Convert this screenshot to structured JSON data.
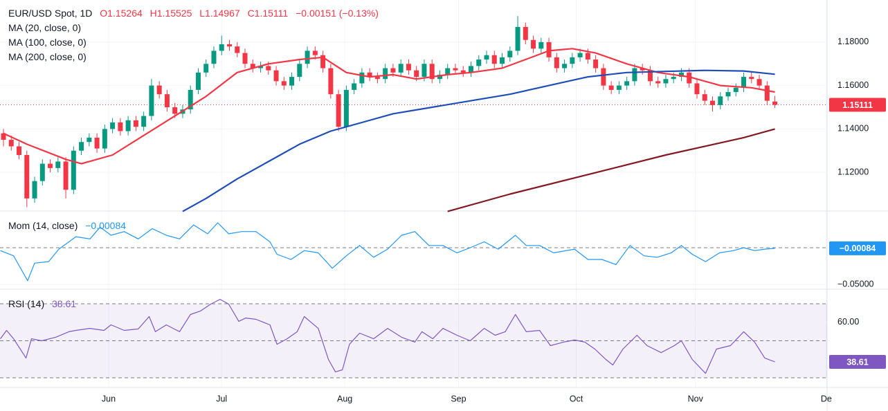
{
  "chart_data": [
    {
      "type": "candlestick",
      "title": "EUR/USD Spot, 1D",
      "ohlc_labels": [
        "O1.15264",
        "H1.15525",
        "L1.14967",
        "C1.15111"
      ],
      "change_label": "−0.00151 (−0.13%)",
      "up_color": "#089981",
      "down_color": "#f23645",
      "xlim": [
        -0.444,
        105.7
      ],
      "xticks": [
        {
          "value": 13.5,
          "label": "Jun"
        },
        {
          "value": 28.0,
          "label": "Jul"
        },
        {
          "value": 43.8,
          "label": "Aug"
        },
        {
          "value": 58.4,
          "label": "Sep"
        },
        {
          "value": 73.5,
          "label": "Oct"
        },
        {
          "value": 88.8,
          "label": "Nov"
        },
        {
          "value": 105.6,
          "label": "De"
        }
      ],
      "ylim": [
        1.1022,
        1.1994
      ],
      "yticks": [
        {
          "value": 1.12,
          "label": "1.12000"
        },
        {
          "value": 1.14,
          "label": "1.14000"
        },
        {
          "value": 1.16,
          "label": "1.16000"
        },
        {
          "value": 1.18,
          "label": "1.18000"
        }
      ],
      "last_price": {
        "value": 1.15111,
        "label": "1.15111"
      },
      "x": [
        0,
        1,
        2,
        3,
        4,
        5,
        6,
        7,
        8,
        9,
        10,
        11,
        12,
        13,
        14,
        15,
        16,
        17,
        18,
        19,
        20,
        21,
        22,
        23,
        24,
        25,
        26,
        27,
        28,
        29,
        30,
        31,
        32,
        33,
        34,
        35,
        36,
        37,
        38,
        39,
        40,
        41,
        42,
        43,
        44,
        45,
        46,
        47,
        48,
        49,
        50,
        51,
        52,
        53,
        54,
        55,
        56,
        57,
        58,
        59,
        60,
        61,
        62,
        63,
        64,
        65,
        66,
        67,
        68,
        69,
        70,
        71,
        72,
        73,
        74,
        75,
        76,
        77,
        78,
        79,
        80,
        81,
        82,
        83,
        84,
        85,
        86,
        87,
        88,
        89,
        90,
        91,
        92,
        93,
        94,
        95,
        96,
        97,
        98,
        99
      ],
      "ohlc": [
        [
          1.138,
          1.14,
          1.132,
          1.135
        ],
        [
          1.135,
          1.137,
          1.13,
          1.132
        ],
        [
          1.132,
          1.134,
          1.126,
          1.128
        ],
        [
          1.128,
          1.13,
          1.104,
          1.108
        ],
        [
          1.108,
          1.118,
          1.106,
          1.116
        ],
        [
          1.116,
          1.126,
          1.114,
          1.124
        ],
        [
          1.124,
          1.126,
          1.12,
          1.122
        ],
        [
          1.122,
          1.127,
          1.12,
          1.125
        ],
        [
          1.125,
          1.127,
          1.108,
          1.112
        ],
        [
          1.112,
          1.132,
          1.11,
          1.13
        ],
        [
          1.13,
          1.136,
          1.128,
          1.134
        ],
        [
          1.134,
          1.138,
          1.132,
          1.136
        ],
        [
          1.136,
          1.138,
          1.129,
          1.131
        ],
        [
          1.131,
          1.142,
          1.129,
          1.14
        ],
        [
          1.14,
          1.145,
          1.138,
          1.143
        ],
        [
          1.143,
          1.145,
          1.137,
          1.139
        ],
        [
          1.139,
          1.146,
          1.137,
          1.144
        ],
        [
          1.144,
          1.146,
          1.139,
          1.141
        ],
        [
          1.141,
          1.148,
          1.139,
          1.146
        ],
        [
          1.146,
          1.163,
          1.144,
          1.16
        ],
        [
          1.16,
          1.162,
          1.154,
          1.156
        ],
        [
          1.156,
          1.158,
          1.148,
          1.15
        ],
        [
          1.15,
          1.152,
          1.145,
          1.147
        ],
        [
          1.147,
          1.151,
          1.145,
          1.149
        ],
        [
          1.149,
          1.16,
          1.147,
          1.158
        ],
        [
          1.158,
          1.168,
          1.156,
          1.166
        ],
        [
          1.166,
          1.172,
          1.164,
          1.17
        ],
        [
          1.17,
          1.178,
          1.168,
          1.176
        ],
        [
          1.176,
          1.183,
          1.174,
          1.179
        ],
        [
          1.179,
          1.181,
          1.176,
          1.178
        ],
        [
          1.178,
          1.18,
          1.173,
          1.175
        ],
        [
          1.175,
          1.177,
          1.168,
          1.17
        ],
        [
          1.17,
          1.172,
          1.166,
          1.168
        ],
        [
          1.168,
          1.171,
          1.166,
          1.169
        ],
        [
          1.169,
          1.171,
          1.165,
          1.167
        ],
        [
          1.167,
          1.169,
          1.16,
          1.162
        ],
        [
          1.162,
          1.164,
          1.158,
          1.16
        ],
        [
          1.16,
          1.166,
          1.158,
          1.164
        ],
        [
          1.164,
          1.172,
          1.162,
          1.17
        ],
        [
          1.17,
          1.178,
          1.168,
          1.176
        ],
        [
          1.176,
          1.178,
          1.172,
          1.174
        ],
        [
          1.174,
          1.176,
          1.166,
          1.168
        ],
        [
          1.168,
          1.17,
          1.154,
          1.156
        ],
        [
          1.156,
          1.158,
          1.139,
          1.141
        ],
        [
          1.141,
          1.16,
          1.139,
          1.158
        ],
        [
          1.158,
          1.163,
          1.156,
          1.161
        ],
        [
          1.161,
          1.168,
          1.159,
          1.166
        ],
        [
          1.166,
          1.168,
          1.162,
          1.164
        ],
        [
          1.164,
          1.166,
          1.161,
          1.163
        ],
        [
          1.163,
          1.17,
          1.161,
          1.168
        ],
        [
          1.168,
          1.17,
          1.164,
          1.166
        ],
        [
          1.166,
          1.172,
          1.164,
          1.17
        ],
        [
          1.17,
          1.172,
          1.165,
          1.167
        ],
        [
          1.167,
          1.169,
          1.162,
          1.164
        ],
        [
          1.164,
          1.172,
          1.162,
          1.17
        ],
        [
          1.17,
          1.172,
          1.161,
          1.163
        ],
        [
          1.163,
          1.167,
          1.161,
          1.165
        ],
        [
          1.165,
          1.17,
          1.163,
          1.168
        ],
        [
          1.168,
          1.17,
          1.165,
          1.167
        ],
        [
          1.167,
          1.169,
          1.164,
          1.166
        ],
        [
          1.166,
          1.171,
          1.164,
          1.169
        ],
        [
          1.169,
          1.174,
          1.167,
          1.172
        ],
        [
          1.172,
          1.176,
          1.17,
          1.174
        ],
        [
          1.174,
          1.176,
          1.168,
          1.17
        ],
        [
          1.17,
          1.175,
          1.168,
          1.173
        ],
        [
          1.173,
          1.178,
          1.171,
          1.176
        ],
        [
          1.176,
          1.192,
          1.174,
          1.187
        ],
        [
          1.187,
          1.189,
          1.179,
          1.181
        ],
        [
          1.181,
          1.183,
          1.175,
          1.177
        ],
        [
          1.177,
          1.182,
          1.175,
          1.18
        ],
        [
          1.18,
          1.182,
          1.171,
          1.173
        ],
        [
          1.173,
          1.175,
          1.166,
          1.168
        ],
        [
          1.168,
          1.172,
          1.166,
          1.17
        ],
        [
          1.17,
          1.175,
          1.168,
          1.173
        ],
        [
          1.173,
          1.177,
          1.171,
          1.175
        ],
        [
          1.175,
          1.177,
          1.17,
          1.172
        ],
        [
          1.172,
          1.174,
          1.166,
          1.168
        ],
        [
          1.168,
          1.17,
          1.158,
          1.16
        ],
        [
          1.16,
          1.162,
          1.156,
          1.158
        ],
        [
          1.158,
          1.162,
          1.156,
          1.16
        ],
        [
          1.16,
          1.164,
          1.158,
          1.162
        ],
        [
          1.162,
          1.17,
          1.16,
          1.168
        ],
        [
          1.168,
          1.17,
          1.165,
          1.167
        ],
        [
          1.167,
          1.169,
          1.16,
          1.162
        ],
        [
          1.162,
          1.164,
          1.159,
          1.161
        ],
        [
          1.161,
          1.165,
          1.159,
          1.163
        ],
        [
          1.163,
          1.166,
          1.161,
          1.164
        ],
        [
          1.164,
          1.168,
          1.162,
          1.166
        ],
        [
          1.166,
          1.168,
          1.159,
          1.161
        ],
        [
          1.161,
          1.163,
          1.154,
          1.156
        ],
        [
          1.156,
          1.158,
          1.151,
          1.153
        ],
        [
          1.153,
          1.155,
          1.148,
          1.151
        ],
        [
          1.151,
          1.157,
          1.149,
          1.155
        ],
        [
          1.155,
          1.159,
          1.153,
          1.157
        ],
        [
          1.157,
          1.161,
          1.155,
          1.159
        ],
        [
          1.159,
          1.166,
          1.157,
          1.164
        ],
        [
          1.164,
          1.166,
          1.161,
          1.163
        ],
        [
          1.163,
          1.165,
          1.158,
          1.16
        ],
        [
          1.16,
          1.162,
          1.151,
          1.153
        ],
        [
          1.15264,
          1.15525,
          1.14967,
          1.15111
        ]
      ],
      "overlays": [
        {
          "name": "MA (20, close, 0)",
          "color": "#f23645",
          "x": [
            0,
            3,
            8,
            10,
            14,
            18,
            22,
            26,
            30,
            34,
            38,
            41,
            44,
            47,
            50,
            53,
            57,
            60,
            64,
            67,
            70,
            73,
            76,
            80,
            84,
            88,
            92,
            96,
            99
          ],
          "values": [
            1.138,
            1.133,
            1.126,
            1.124,
            1.128,
            1.137,
            1.146,
            1.155,
            1.166,
            1.17,
            1.172,
            1.173,
            1.166,
            1.164,
            1.165,
            1.163,
            1.165,
            1.166,
            1.168,
            1.172,
            1.176,
            1.177,
            1.175,
            1.17,
            1.166,
            1.164,
            1.16,
            1.159,
            1.157
          ]
        },
        {
          "name": "MA (100, close, 0)",
          "color": "#1e4db7",
          "x": [
            23,
            26,
            30,
            34,
            38,
            42,
            46,
            50,
            55,
            60,
            65,
            70,
            75,
            80,
            85,
            90,
            95,
            99
          ],
          "values": [
            1.102,
            1.108,
            1.117,
            1.125,
            1.133,
            1.139,
            1.143,
            1.147,
            1.15,
            1.153,
            1.156,
            1.16,
            1.164,
            1.166,
            1.1665,
            1.167,
            1.1667,
            1.1652
          ]
        },
        {
          "name": "MA (200, close, 0)",
          "color": "#801922",
          "x": [
            57,
            65,
            75,
            85,
            95,
            99
          ],
          "values": [
            1.102,
            1.11,
            1.119,
            1.128,
            1.136,
            1.14
          ]
        }
      ]
    },
    {
      "type": "line",
      "ylim": [
        -0.0566,
        0.05
      ],
      "yticks": [
        {
          "value": -0.05,
          "label": "−0.05000"
        }
      ],
      "dashed_lines": [
        0
      ],
      "last_value": {
        "value": -0.00084,
        "label": "−0.00084"
      },
      "series": [
        {
          "name": "Mom (14, close)",
          "color": "#2196f3",
          "x": [
            -0.4,
            1.3,
            3.1,
            4.0,
            5.8,
            7.1,
            8.4,
            9.3,
            11.1,
            12.4,
            13.8,
            15.5,
            17.3,
            19.1,
            20.9,
            22.6,
            24.4,
            26.2,
            27.5,
            28.9,
            30.6,
            32.4,
            34.2,
            35.1,
            36.9,
            38.6,
            40.4,
            42.2,
            44.0,
            45.7,
            47.5,
            49.3,
            51.1,
            52.8,
            54.6,
            56.4,
            58.2,
            59.9,
            61.7,
            63.5,
            65.7,
            67.1,
            68.8,
            70.6,
            73.3,
            75.0,
            76.8,
            78.6,
            80.4,
            82.2,
            83.9,
            85.7,
            87.0,
            88.4,
            90.1,
            91.9,
            93.7,
            95.0,
            96.4,
            97.7,
            99
          ],
          "values": [
            -0.004,
            -0.011,
            -0.045,
            -0.021,
            -0.019,
            -0.002,
            0.008,
            0.015,
            0.012,
            0.028,
            0.017,
            0.022,
            0.012,
            0.026,
            0.017,
            0.012,
            0.031,
            0.019,
            0.034,
            0.019,
            0.022,
            0.022,
            0.008,
            -0.009,
            -0.016,
            -0.004,
            -0.007,
            -0.028,
            -0.011,
            0.003,
            -0.013,
            -0.002,
            0.017,
            0.022,
            0.003,
            0.003,
            -0.007,
            0,
            0.008,
            -0.002,
            0.017,
            0.003,
            0.003,
            -0.007,
            -0.002,
            -0.016,
            -0.016,
            -0.023,
            0.003,
            -0.011,
            -0.013,
            -0.007,
            0.003,
            -0.009,
            -0.019,
            -0.007,
            -0.004,
            0,
            -0.004,
            -0.002,
            -0.00084
          ]
        }
      ]
    },
    {
      "type": "line",
      "ylim": [
        24.77,
        77.85
      ],
      "yticks": [
        {
          "value": 60,
          "label": "60.00"
        }
      ],
      "dashed_lines": [
        70,
        50,
        30
      ],
      "band": [
        30,
        70
      ],
      "last_value": {
        "value": 38.61,
        "label": "38.61"
      },
      "series": [
        {
          "name": "RSI (14)",
          "color": "#7e57c2",
          "x": [
            -0.4,
            0.4,
            1.3,
            2.9,
            3.6,
            4.9,
            6.7,
            8.4,
            9.3,
            11.1,
            12.9,
            13.8,
            15.5,
            17.3,
            18.7,
            19.5,
            20.9,
            22.6,
            24.0,
            25.3,
            26.6,
            27.8,
            28.9,
            30.2,
            31.1,
            32.4,
            34.2,
            35.1,
            36.4,
            37.7,
            38.6,
            40.4,
            41.7,
            42.6,
            43.5,
            44.4,
            45.7,
            47.5,
            49.3,
            51.1,
            52.8,
            53.7,
            55.1,
            56.4,
            58.2,
            59.9,
            61.7,
            63.1,
            64.4,
            65.7,
            67.1,
            68.8,
            70.2,
            71.9,
            73.3,
            74.6,
            75.9,
            77.3,
            78.2,
            79.5,
            81.3,
            82.6,
            84.4,
            86.1,
            87.0,
            88.4,
            90.1,
            91.5,
            93.3,
            95.0,
            96.4,
            97.7,
            99
          ],
          "values": [
            51.1,
            55.6,
            51.1,
            40.7,
            51.1,
            50,
            51.9,
            54.9,
            55.6,
            56.7,
            55.6,
            58.6,
            55.6,
            56.4,
            63.1,
            54.9,
            58.6,
            54.9,
            64.2,
            66.1,
            69.8,
            72.4,
            69.8,
            60.5,
            62.3,
            61.6,
            58.6,
            48.1,
            51.1,
            54.9,
            63.1,
            56.7,
            39.9,
            33.2,
            34.3,
            48.1,
            54.1,
            51.1,
            56.7,
            51.9,
            49.3,
            54.9,
            51.1,
            56.7,
            53,
            50,
            56.7,
            53,
            54.9,
            64.2,
            54.9,
            55.6,
            47.4,
            49.3,
            50.4,
            49.3,
            45.5,
            39.9,
            36.9,
            45.5,
            53,
            47.4,
            43.6,
            47.4,
            50,
            39.9,
            32.4,
            45.5,
            47.4,
            54.9,
            49.3,
            40.7,
            38.61
          ]
        }
      ]
    }
  ]
}
